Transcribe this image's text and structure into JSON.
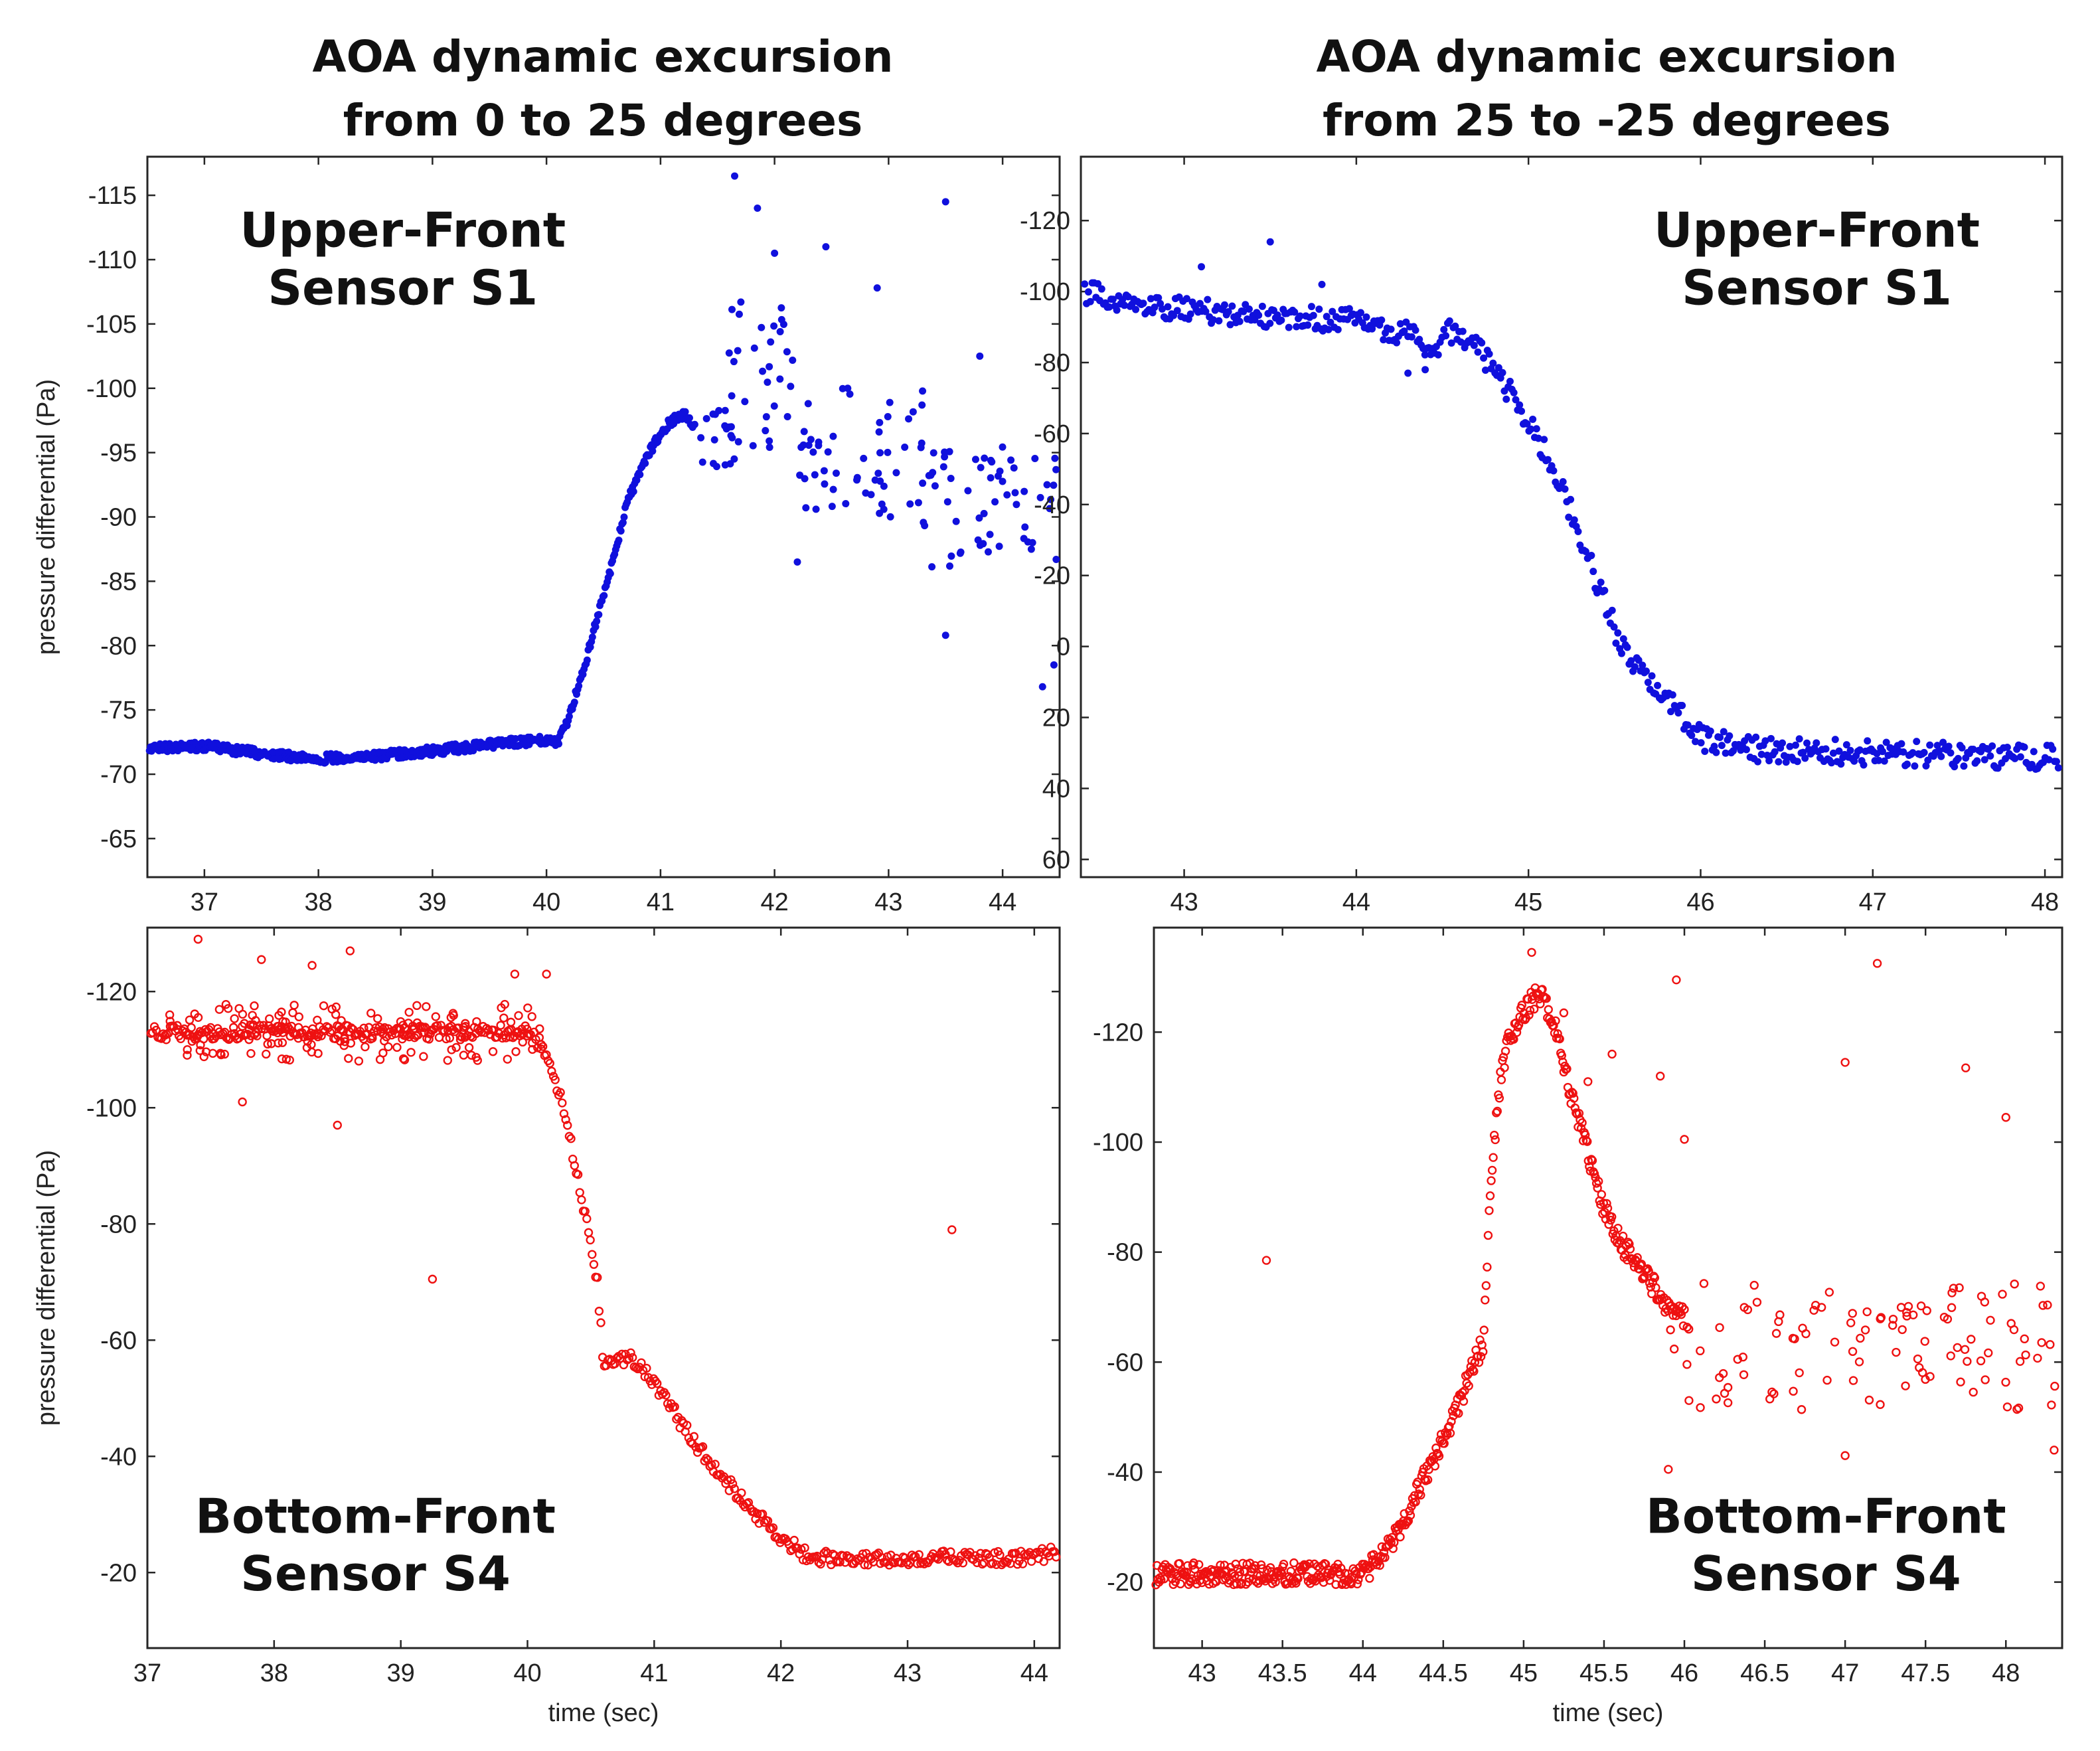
{
  "figure": {
    "column_titles": [
      [
        "AOA dynamic excursion",
        "from 0 to 25 degrees"
      ],
      [
        "AOA dynamic excursion",
        "from 25 to -25 degrees"
      ]
    ]
  },
  "chart_data": [
    {
      "id": "upper-front-0-25",
      "type": "scatter",
      "title": "",
      "annotation": [
        "Upper-Front",
        "Sensor S1"
      ],
      "annotation_position": "top-left",
      "xlabel": "",
      "ylabel": "pressure differential (Pa)",
      "xlim": [
        36.5,
        44.5
      ],
      "ylim": [
        -62,
        -118
      ],
      "xticks": [
        37,
        38,
        39,
        40,
        41,
        42,
        43,
        44
      ],
      "xtick_labels": [
        "37",
        "38",
        "39",
        "40",
        "41",
        "42",
        "43",
        "44"
      ],
      "yticks": [
        -65,
        -70,
        -75,
        -80,
        -85,
        -90,
        -95,
        -100,
        -105,
        -110,
        -115
      ],
      "ytick_labels": [
        "-65",
        "-70",
        "-75",
        "-80",
        "-85",
        "-90",
        "-95",
        "-100",
        "-105",
        "-110",
        "-115"
      ],
      "color": "#1010dd",
      "marker": "filled",
      "trend": [
        [
          36.5,
          -72.0
        ],
        [
          37.0,
          -72.2
        ],
        [
          37.5,
          -71.6
        ],
        [
          38.0,
          -71.2
        ],
        [
          38.5,
          -71.4
        ],
        [
          39.0,
          -71.8
        ],
        [
          39.5,
          -72.3
        ],
        [
          40.0,
          -72.7
        ],
        [
          40.1,
          -72.5
        ],
        [
          40.2,
          -74.5
        ],
        [
          40.35,
          -79
        ],
        [
          40.5,
          -84
        ],
        [
          40.6,
          -87
        ],
        [
          40.7,
          -91
        ],
        [
          40.8,
          -93
        ],
        [
          40.9,
          -95
        ],
        [
          41.0,
          -96.5
        ],
        [
          41.1,
          -97.5
        ],
        [
          41.2,
          -98.0
        ],
        [
          41.3,
          -97.0
        ]
      ],
      "noise": 0.35,
      "scatter_segments": [
        {
          "x": [
            41.3,
            41.65
          ],
          "y": -96,
          "spread": 2.5,
          "n": 18
        },
        {
          "x": [
            41.6,
            42.2
          ],
          "y": -101,
          "spread": 6,
          "n": 32
        },
        {
          "x": [
            42.2,
            43.3
          ],
          "y": -95,
          "spread": 5,
          "n": 55
        },
        {
          "x": [
            43.3,
            44.5
          ],
          "y": -91,
          "spread": 5,
          "n": 60
        }
      ],
      "extra_points": [
        [
          41.65,
          -116.5
        ],
        [
          41.85,
          -114.0
        ],
        [
          42.0,
          -110.5
        ],
        [
          42.45,
          -111.0
        ],
        [
          42.9,
          -107.8
        ],
        [
          43.5,
          -114.5
        ],
        [
          43.8,
          -102.5
        ],
        [
          42.2,
          -86.5
        ],
        [
          43.5,
          -80.8
        ],
        [
          44.35,
          -76.8
        ],
        [
          44.45,
          -78.5
        ]
      ]
    },
    {
      "id": "upper-front-25-neg25",
      "type": "scatter",
      "title": "",
      "annotation": [
        "Upper-Front",
        "Sensor S1"
      ],
      "annotation_position": "top-right",
      "xlabel": "",
      "ylabel": "",
      "xlim": [
        42.4,
        48.1
      ],
      "ylim": [
        65,
        -138
      ],
      "xticks": [
        43,
        44,
        45,
        46,
        47,
        48
      ],
      "xtick_labels": [
        "43",
        "44",
        "45",
        "46",
        "47",
        "48"
      ],
      "yticks": [
        60,
        40,
        20,
        0,
        -20,
        -40,
        -60,
        -80,
        -100,
        -120
      ],
      "ytick_labels": [
        "60",
        "40",
        "20",
        "0",
        "-20",
        "-40",
        "-60",
        "-80",
        "-100",
        "-120"
      ],
      "color": "#1010dd",
      "marker": "filled",
      "trend": [
        [
          42.4,
          -100
        ],
        [
          42.7,
          -97
        ],
        [
          43.0,
          -95
        ],
        [
          43.5,
          -93
        ],
        [
          44.0,
          -92
        ],
        [
          44.3,
          -88
        ],
        [
          44.45,
          -84
        ],
        [
          44.55,
          -89
        ],
        [
          44.65,
          -87
        ],
        [
          44.8,
          -78
        ],
        [
          45.0,
          -64
        ],
        [
          45.2,
          -44
        ],
        [
          45.4,
          -18
        ],
        [
          45.5,
          -5
        ],
        [
          45.6,
          5
        ],
        [
          45.8,
          14
        ],
        [
          46.0,
          26
        ],
        [
          46.3,
          29
        ],
        [
          47.0,
          30
        ],
        [
          47.5,
          30.5
        ],
        [
          48.1,
          31.5
        ]
      ],
      "noise": 3.5,
      "scatter_segments": [],
      "extra_points": [
        [
          42.4,
          -112
        ],
        [
          43.5,
          -114
        ],
        [
          43.1,
          -107
        ],
        [
          43.8,
          -102
        ],
        [
          44.3,
          -77
        ],
        [
          44.4,
          -78
        ]
      ]
    },
    {
      "id": "bottom-front-0-25",
      "type": "scatter",
      "title": "",
      "annotation": [
        "Bottom-Front",
        "Sensor S4"
      ],
      "annotation_position": "bottom-left",
      "xlabel": "time (sec)",
      "ylabel": "pressure differential (Pa)",
      "xlim": [
        37,
        44.2
      ],
      "ylim": [
        -7,
        -131
      ],
      "xticks": [
        37,
        38,
        39,
        40,
        41,
        42,
        43,
        44
      ],
      "xtick_labels": [
        "37",
        "38",
        "39",
        "40",
        "41",
        "42",
        "43",
        "44"
      ],
      "yticks": [
        -20,
        -40,
        -60,
        -80,
        -100,
        -120
      ],
      "ytick_labels": [
        "-20",
        "-40",
        "-60",
        "-80",
        "-100",
        "-120"
      ],
      "color": "#ee1111",
      "marker": "open",
      "trend": [
        [
          37.0,
          -113
        ],
        [
          40.0,
          -113
        ],
        [
          40.1,
          -111
        ],
        [
          40.25,
          -103
        ],
        [
          40.35,
          -93
        ],
        [
          40.45,
          -82
        ],
        [
          40.55,
          -70
        ],
        [
          40.6,
          -56
        ],
        [
          40.8,
          -57
        ],
        [
          41.0,
          -53
        ],
        [
          41.2,
          -46
        ],
        [
          41.4,
          -40
        ],
        [
          41.6,
          -35
        ],
        [
          41.8,
          -30
        ],
        [
          42.0,
          -26
        ],
        [
          42.2,
          -23
        ],
        [
          42.5,
          -22
        ],
        [
          43.0,
          -22.5
        ],
        [
          44.0,
          -22.5
        ],
        [
          44.2,
          -24
        ]
      ],
      "noise": 1.2,
      "scatter_segments": [
        {
          "x": [
            37.0,
            40.15
          ],
          "y": -113,
          "spread": 5,
          "n": 150
        }
      ],
      "extra_points": [
        [
          37.0,
          -103
        ],
        [
          37.4,
          -129
        ],
        [
          37.9,
          -125.5
        ],
        [
          38.3,
          -124.5
        ],
        [
          38.6,
          -127
        ],
        [
          38.5,
          -97
        ],
        [
          39.25,
          -70.5
        ],
        [
          37.75,
          -101
        ],
        [
          40.15,
          -123
        ],
        [
          43.35,
          -79
        ],
        [
          39.9,
          -123
        ]
      ]
    },
    {
      "id": "bottom-front-25-neg25",
      "type": "scatter",
      "title": "",
      "annotation": [
        "Bottom-Front",
        "Sensor S4"
      ],
      "annotation_position": "bottom-right",
      "xlabel": "time (sec)",
      "ylabel": "",
      "xlim": [
        42.7,
        48.35
      ],
      "ylim": [
        -8,
        -139
      ],
      "xticks": [
        43,
        43.5,
        44,
        44.5,
        45,
        45.5,
        46,
        46.5,
        47,
        47.5,
        48
      ],
      "xtick_labels": [
        "43",
        "43.5",
        "44",
        "44.5",
        "45",
        "45.5",
        "46",
        "46.5",
        "47",
        "47.5",
        "48"
      ],
      "yticks": [
        -20,
        -40,
        -60,
        -80,
        -100,
        -120
      ],
      "ytick_labels": [
        "-20",
        "-40",
        "-60",
        "-80",
        "-100",
        "-120"
      ],
      "color": "#ee1111",
      "marker": "open",
      "trend": [
        [
          42.7,
          -21.5
        ],
        [
          43.5,
          -21.5
        ],
        [
          44.0,
          -21.5
        ],
        [
          44.1,
          -24
        ],
        [
          44.2,
          -28
        ],
        [
          44.3,
          -34
        ],
        [
          44.4,
          -40
        ],
        [
          44.5,
          -46
        ],
        [
          44.6,
          -53
        ],
        [
          44.7,
          -60
        ],
        [
          44.75,
          -64
        ],
        [
          44.8,
          -95
        ],
        [
          44.85,
          -110
        ],
        [
          44.9,
          -118
        ],
        [
          45.0,
          -124
        ],
        [
          45.1,
          -127
        ],
        [
          45.2,
          -121
        ],
        [
          45.3,
          -108
        ],
        [
          45.4,
          -98
        ],
        [
          45.5,
          -88
        ],
        [
          45.6,
          -82
        ],
        [
          45.7,
          -78
        ],
        [
          45.8,
          -74
        ],
        [
          45.9,
          -70
        ],
        [
          46.0,
          -68
        ]
      ],
      "noise": 2.0,
      "scatter_segments": [
        {
          "x": [
            45.9,
            48.35
          ],
          "y": -63,
          "spread": 12,
          "n": 110
        }
      ],
      "extra_points": [
        [
          43.4,
          -78.5
        ],
        [
          45.05,
          -134.5
        ],
        [
          45.25,
          -123.5
        ],
        [
          45.4,
          -111
        ],
        [
          45.55,
          -116
        ],
        [
          45.85,
          -112
        ],
        [
          45.95,
          -129.5
        ],
        [
          46.0,
          -100.5
        ],
        [
          47.2,
          -132.5
        ],
        [
          47.0,
          -114.5
        ],
        [
          47.75,
          -113.5
        ],
        [
          48.0,
          -104.5
        ],
        [
          48.35,
          -90
        ],
        [
          45.9,
          -40.5
        ],
        [
          47.0,
          -43
        ],
        [
          48.3,
          -44
        ]
      ]
    }
  ]
}
